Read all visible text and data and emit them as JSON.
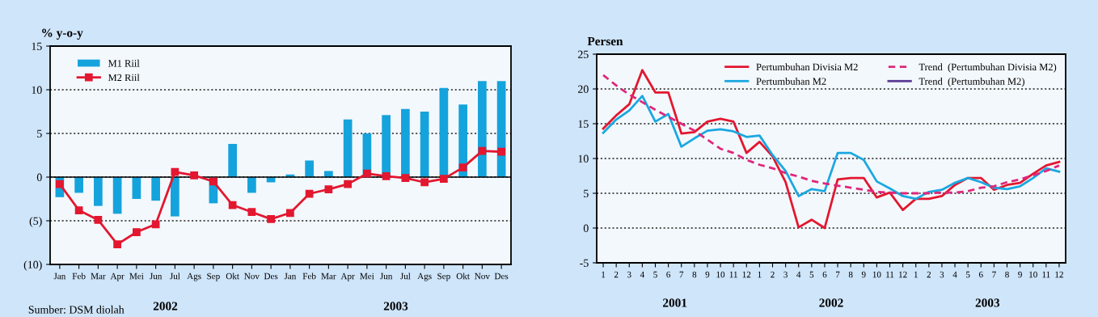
{
  "chart_data": [
    {
      "type": "bar",
      "ylabel": "% y-o-y",
      "categories": [
        "Jan",
        "Feb",
        "Mar",
        "Apr",
        "Mei",
        "Jun",
        "Jul",
        "Ags",
        "Sep",
        "Okt",
        "Nov",
        "Des",
        "Jan",
        "Feb",
        "Mar",
        "Apr",
        "Mei",
        "Jun",
        "Jul",
        "Ags",
        "Sep",
        "Okt",
        "Nov",
        "Des"
      ],
      "series": [
        {
          "name": "M1 Riil",
          "type": "bar",
          "color": "#14a3dc",
          "values": [
            -2.3,
            -1.8,
            -3.3,
            -4.2,
            -2.5,
            -2.7,
            -4.5,
            0,
            -3.0,
            3.8,
            -1.8,
            -0.6,
            0.3,
            1.9,
            0.7,
            6.6,
            5.0,
            7.1,
            7.8,
            7.5,
            10.2,
            8.3,
            11.0,
            11.0
          ]
        },
        {
          "name": "M2 Riil",
          "type": "line",
          "marker": "square",
          "color": "#e3172f",
          "values": [
            -0.8,
            -3.8,
            -4.9,
            -7.7,
            -6.3,
            -5.4,
            0.6,
            0.2,
            -0.5,
            -3.2,
            -4.0,
            -4.8,
            -4.1,
            -1.9,
            -1.4,
            -0.8,
            0.4,
            0.1,
            -0.1,
            -0.6,
            -0.2,
            1.1,
            3.0,
            2.9
          ]
        }
      ],
      "ylim": [
        -10,
        15
      ],
      "yticks": [
        {
          "value": -10,
          "label": "(10)"
        },
        {
          "value": -5,
          "label": "(5)"
        },
        0,
        5,
        10,
        15
      ],
      "ref_lines": [
        {
          "axis": "y",
          "value": 0,
          "color": "#000000"
        }
      ],
      "grid": "y",
      "legend": "top left",
      "annotations": [
        "2002",
        "2003",
        "Sumber: DSM diolah"
      ]
    },
    {
      "type": "line",
      "ylabel": "Persen",
      "categories": [
        "1",
        "2",
        "3",
        "4",
        "5",
        "6",
        "7",
        "8",
        "9",
        "10",
        "11",
        "12",
        "1",
        "2",
        "3",
        "4",
        "5",
        "6",
        "7",
        "8",
        "9",
        "10",
        "11",
        "12",
        "1",
        "2",
        "3",
        "4",
        "5",
        "6",
        "7",
        "8",
        "9",
        "10",
        "11",
        "12"
      ],
      "series": [
        {
          "name": "Pertumbuhan Divisia M2",
          "color": "#e3172f",
          "values": [
            14.3,
            16.2,
            17.8,
            22.7,
            19.5,
            19.5,
            13.6,
            13.8,
            15.3,
            15.7,
            15.3,
            10.8,
            12.4,
            10.3,
            6.6,
            0.1,
            1.2,
            0.0,
            7.0,
            7.2,
            7.2,
            4.4,
            5.1,
            2.6,
            4.2,
            4.2,
            4.6,
            6.2,
            7.2,
            7.2,
            5.5,
            6.2,
            6.5,
            7.8,
            9.0,
            9.5
          ]
        },
        {
          "name": "Pertumbuhan M2",
          "color": "#1aa8e0",
          "values": [
            13.7,
            15.6,
            16.9,
            19.0,
            15.3,
            16.4,
            11.7,
            12.9,
            14.0,
            14.2,
            13.9,
            13.1,
            13.3,
            10.5,
            8.2,
            4.6,
            5.6,
            5.3,
            10.8,
            10.8,
            9.8,
            6.7,
            5.7,
            4.6,
            4.2,
            5.2,
            5.5,
            6.5,
            7.2,
            6.6,
            5.8,
            5.6,
            6.0,
            7.2,
            8.6,
            8.1
          ]
        },
        {
          "name": "Trend  (Pertumbuhan Divisia M2)",
          "color": "#e0267a",
          "line_style": "dashed",
          "values": [
            22.0,
            20.5,
            19.2,
            18.1,
            17.0,
            16.0,
            15.0,
            14.0,
            12.7,
            11.4,
            10.8,
            9.8,
            9.1,
            8.6,
            7.9,
            7.4,
            6.8,
            6.4,
            6.1,
            5.8,
            5.5,
            5.2,
            5.1,
            5.0,
            5.0,
            5.0,
            5.1,
            5.1,
            5.3,
            5.8,
            6.0,
            6.6,
            7.0,
            7.6,
            8.2,
            9.0
          ]
        },
        {
          "name": "Trend  (Pertumbuhan M2)",
          "color": "#5b3a94",
          "values": [
            null,
            null,
            null,
            null,
            null,
            null,
            null,
            null,
            null,
            null,
            null,
            null,
            null,
            null,
            null,
            null,
            null,
            null,
            null,
            null,
            null,
            null,
            null,
            null,
            null,
            null,
            null,
            null,
            null,
            null,
            null,
            null,
            null,
            null,
            null,
            null
          ]
        }
      ],
      "ylim": [
        -5,
        25
      ],
      "yticks": [
        -5,
        0,
        5,
        10,
        15,
        20,
        25
      ],
      "grid": "y",
      "legend": "top right",
      "annotations": [
        "2001",
        "2002",
        "2003"
      ]
    }
  ]
}
